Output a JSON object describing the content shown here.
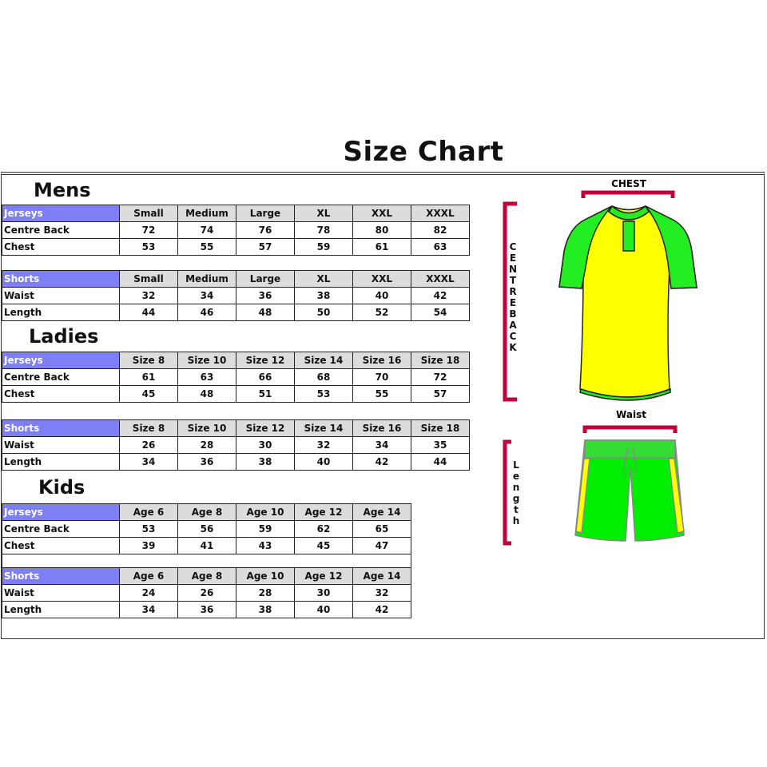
{
  "title": "Size Chart",
  "sections": [
    {
      "heading": "Mens",
      "tables": [
        {
          "label": "Jerseys",
          "sizes": [
            "Small",
            "Medium",
            "Large",
            "XL",
            "XXL",
            "XXXL"
          ],
          "rows": [
            {
              "label": "Centre Back",
              "values": [
                "72",
                "74",
                "76",
                "78",
                "80",
                "82"
              ]
            },
            {
              "label": "Chest",
              "values": [
                "53",
                "55",
                "57",
                "59",
                "61",
                "63"
              ]
            }
          ]
        },
        {
          "label": "Shorts",
          "sizes": [
            "Small",
            "Medium",
            "Large",
            "XL",
            "XXL",
            "XXXL"
          ],
          "rows": [
            {
              "label": "Waist",
              "values": [
                "32",
                "34",
                "36",
                "38",
                "40",
                "42"
              ]
            },
            {
              "label": "Length",
              "values": [
                "44",
                "46",
                "48",
                "50",
                "52",
                "54"
              ]
            }
          ]
        }
      ]
    },
    {
      "heading": "Ladies",
      "tables": [
        {
          "label": "Jerseys",
          "sizes": [
            "Size 8",
            "Size 10",
            "Size 12",
            "Size 14",
            "Size 16",
            "Size 18"
          ],
          "rows": [
            {
              "label": "Centre Back",
              "values": [
                "61",
                "63",
                "66",
                "68",
                "70",
                "72"
              ]
            },
            {
              "label": "Chest",
              "values": [
                "45",
                "48",
                "51",
                "53",
                "55",
                "57"
              ]
            }
          ]
        },
        {
          "label": "Shorts",
          "sizes": [
            "Size 8",
            "Size 10",
            "Size 12",
            "Size 14",
            "Size 16",
            "Size 18"
          ],
          "rows": [
            {
              "label": "Waist",
              "values": [
                "26",
                "28",
                "30",
                "32",
                "34",
                "35"
              ]
            },
            {
              "label": "Length",
              "values": [
                "34",
                "36",
                "38",
                "40",
                "42",
                "44"
              ]
            }
          ]
        }
      ]
    },
    {
      "heading": "Kids",
      "tables": [
        {
          "label": "Jerseys",
          "sizes": [
            "Age 6",
            "Age 8",
            "Age 10",
            "Age 12",
            "Age 14"
          ],
          "rows": [
            {
              "label": "Centre Back",
              "values": [
                "53",
                "56",
                "59",
                "62",
                "65"
              ]
            },
            {
              "label": "Chest",
              "values": [
                "39",
                "41",
                "43",
                "45",
                "47"
              ]
            }
          ]
        },
        {
          "label": "Shorts",
          "sizes": [
            "Age 6",
            "Age 8",
            "Age 10",
            "Age 12",
            "Age 14"
          ],
          "rows": [
            {
              "label": "Waist",
              "values": [
                "24",
                "26",
                "28",
                "30",
                "32"
              ]
            },
            {
              "label": "Length",
              "values": [
                "34",
                "36",
                "38",
                "40",
                "42"
              ]
            }
          ]
        }
      ]
    }
  ],
  "illustration": {
    "chest_label": "CHEST",
    "centre_back_label": "CENTRE BACK",
    "waist_label": "Waist",
    "length_label": "Length",
    "colors": {
      "jersey_body": "#ffff00",
      "jersey_sleeves": "#00ff00",
      "shorts": "#00ee00",
      "shorts_stripe": "#ffff00",
      "measure_bracket": "#c2003c",
      "header_label_bg": "#7f7ff5",
      "header_size_bg": "#dcdcdc"
    }
  }
}
